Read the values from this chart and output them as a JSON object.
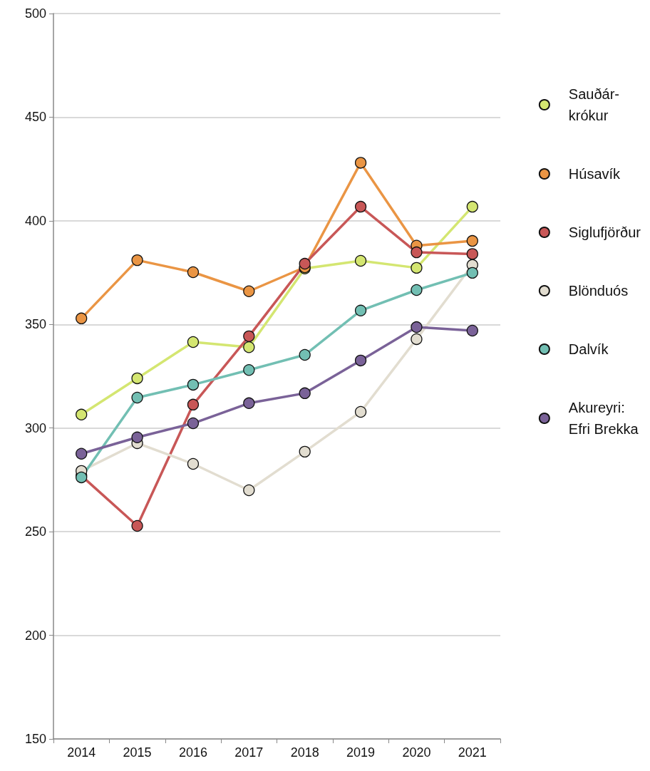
{
  "chart_data": {
    "type": "line",
    "categories": [
      "2014",
      "2015",
      "2016",
      "2017",
      "2018",
      "2019",
      "2020",
      "2021"
    ],
    "series": [
      {
        "name": "Sauðár-\nkrókur",
        "color": "#d4e671",
        "values": [
          306.5,
          324,
          341.5,
          339,
          377,
          380.7,
          377.3,
          406.8
        ]
      },
      {
        "name": "Húsavík",
        "color": "#ea9544",
        "values": [
          352.9,
          381,
          375.2,
          366,
          377.6,
          428,
          388,
          390.3
        ]
      },
      {
        "name": "Siglufjörður",
        "color": "#c85757",
        "values": [
          277,
          252.8,
          311.3,
          344.3,
          379.3,
          406.8,
          384.8,
          384
        ]
      },
      {
        "name": "Blönduós",
        "color": "#e2ddd0",
        "values": [
          279.3,
          292.7,
          282.7,
          270,
          288.6,
          307.8,
          342.9,
          378.7
        ]
      },
      {
        "name": "Dalvík",
        "color": "#72bfb3",
        "values": [
          276.2,
          314.7,
          320.9,
          328,
          335.3,
          356.7,
          366.6,
          374.9
        ]
      },
      {
        "name": "Akureyri:\nEfri Brekka",
        "color": "#7a6298",
        "values": [
          287.6,
          295.5,
          302.3,
          312,
          316.8,
          332.6,
          348.7,
          347
        ]
      }
    ],
    "ylim": [
      150,
      500
    ],
    "yticks": [
      150,
      200,
      250,
      300,
      350,
      400,
      450,
      500
    ],
    "grid": "y",
    "legend": "right",
    "marker": "circle",
    "line_style": "solid"
  }
}
